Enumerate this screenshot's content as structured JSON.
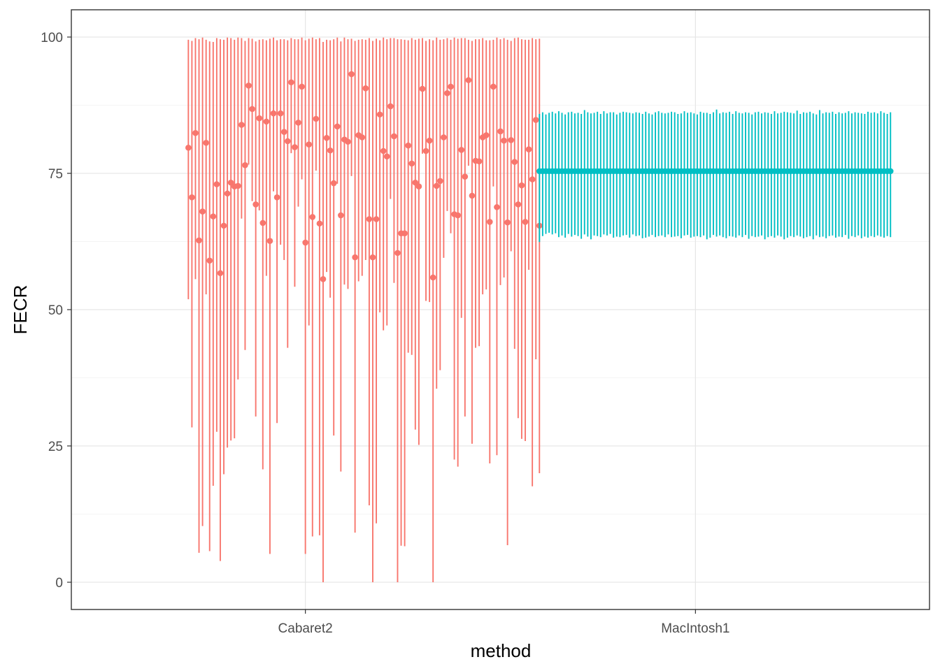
{
  "chart_data": {
    "type": "pointrange",
    "title": "",
    "xlabel": "method",
    "ylabel": "FECR",
    "categories": [
      "Cabaret2",
      "MacIntosh1"
    ],
    "ylim": [
      -5,
      105
    ],
    "yticks": [
      0,
      25,
      50,
      75,
      100
    ],
    "grid": true,
    "legend": "none",
    "colors": {
      "Cabaret2": "#F8766D",
      "MacIntosh1": "#00BFC4"
    },
    "series": [
      {
        "category": "Cabaret2",
        "x_range": [
          0.7,
          1.6
        ],
        "est": [
          79.7,
          70.6,
          82.4,
          62.7,
          68.0,
          80.6,
          59.0,
          67.1,
          73.0,
          56.7,
          65.4,
          71.3,
          73.3,
          72.6,
          72.7,
          83.9,
          76.5,
          91.1,
          86.8,
          69.3,
          85.1,
          65.9,
          84.5,
          62.6,
          86.0,
          70.6,
          86.0,
          82.6,
          80.9,
          91.7,
          79.8,
          84.3,
          90.9,
          62.3,
          80.3,
          67.0,
          85.0,
          65.8,
          55.6,
          81.5,
          79.2,
          73.2,
          83.6,
          67.3,
          81.2,
          80.8,
          93.2,
          59.6,
          82.0,
          81.6,
          90.6,
          66.6,
          59.6,
          66.6,
          85.8,
          79.1,
          78.1,
          87.3,
          81.8,
          60.4,
          64.0,
          64.0,
          80.1,
          76.8,
          73.3,
          72.6,
          90.5,
          79.1,
          81.0,
          55.9,
          72.7,
          73.6,
          81.6,
          89.7,
          90.9,
          67.5,
          67.3,
          79.3,
          74.4,
          92.1,
          70.9,
          77.3,
          77.2,
          81.6,
          82.0,
          66.1,
          90.9,
          68.8,
          82.7,
          81.0,
          66.0,
          81.1,
          77.1,
          69.3,
          72.8,
          66.1,
          79.4,
          73.9,
          84.8,
          65.4
        ],
        "upper": [
          99.5,
          99.3,
          99.8,
          99.6,
          99.9,
          99.5,
          99.2,
          99.1,
          99.8,
          99.6,
          99.5,
          99.9,
          99.8,
          99.5,
          99.9,
          99.8,
          99.3,
          99.8,
          99.7,
          99.2,
          99.5,
          99.6,
          99.4,
          99.7,
          99.9,
          99.4,
          99.6,
          99.6,
          99.4,
          99.8,
          99.6,
          99.6,
          99.9,
          99.4,
          99.7,
          99.9,
          99.6,
          99.8,
          99.1,
          99.5,
          99.4,
          99.6,
          99.9,
          99.2,
          99.9,
          99.6,
          99.7,
          99.3,
          99.5,
          99.6,
          99.5,
          99.8,
          99.3,
          99.7,
          99.4,
          99.9,
          99.6,
          99.8,
          99.8,
          99.6,
          99.6,
          99.5,
          99.4,
          99.8,
          99.5,
          99.7,
          99.8,
          99.3,
          99.6,
          99.4,
          99.9,
          99.5,
          99.6,
          99.8,
          99.5,
          99.9,
          99.7,
          99.8,
          99.8,
          99.5,
          99.3,
          99.6,
          99.6,
          99.8,
          99.4,
          99.4,
          99.5,
          99.9,
          99.6,
          99.8,
          99.5,
          99.3,
          99.8,
          99.9,
          99.6,
          99.5,
          99.5,
          99.8,
          99.6,
          99.7
        ],
        "lower": [
          51.9,
          28.4,
          55.6,
          5.4,
          10.3,
          52.8,
          5.7,
          17.7,
          27.6,
          3.9,
          19.8,
          24.7,
          26.0,
          26.4,
          37.2,
          66.7,
          42.6,
          76.6,
          69.9,
          30.4,
          68.2,
          20.7,
          56.2,
          5.2,
          71.7,
          29.2,
          61.9,
          59.1,
          43.0,
          78.7,
          54.2,
          68.9,
          73.9,
          5.2,
          47.1,
          8.4,
          75.5,
          8.6,
          0.0,
          56.9,
          52.2,
          26.9,
          73.1,
          20.3,
          54.6,
          53.8,
          74.5,
          9.1,
          55.2,
          56.2,
          59.1,
          14.1,
          0.0,
          10.8,
          49.5,
          46.2,
          47.1,
          70.3,
          54.9,
          0.0,
          6.7,
          6.6,
          42.1,
          41.7,
          28.0,
          25.2,
          78.6,
          51.6,
          51.4,
          0.0,
          35.5,
          38.9,
          59.5,
          68.1,
          64.0,
          22.5,
          21.2,
          48.5,
          30.4,
          76.4,
          25.4,
          43.0,
          43.3,
          52.8,
          53.7,
          21.8,
          72.6,
          23.3,
          54.5,
          55.9,
          6.8,
          60.7,
          42.8,
          30.1,
          26.3,
          25.9,
          57.3,
          17.6,
          40.9,
          20.0
        ]
      },
      {
        "category": "MacIntosh1",
        "x_range": [
          1.6,
          2.5
        ],
        "est": 75.4,
        "upper": [
          85.9,
          86.2,
          85.8,
          86.1,
          86.3,
          86.0,
          86.4,
          86.1,
          85.8,
          86.2,
          86.3,
          86.0,
          86.1,
          85.9,
          86.6,
          86.2,
          86.0,
          86.1,
          86.3,
          85.9,
          86.4,
          86.0,
          86.2,
          86.2,
          85.8,
          86.1,
          86.3,
          86.2,
          86.1,
          86.0,
          86.2,
          86.1,
          85.9,
          86.3,
          86.0,
          85.8,
          86.2,
          86.4,
          86.1,
          86.0,
          86.1,
          86.3,
          86.2,
          85.9,
          86.0,
          86.4,
          86.1,
          86.2,
          86.0,
          85.8,
          86.3,
          86.1,
          86.1,
          85.9,
          86.2,
          86.7,
          86.0,
          86.2,
          86.1,
          86.3,
          85.9,
          86.4,
          86.1,
          86.0,
          86.2,
          86.1,
          85.8,
          86.2,
          86.3,
          86.0,
          86.2,
          86.1,
          85.9,
          86.4,
          86.0,
          86.1,
          86.3,
          86.2,
          86.1,
          86.0,
          86.5,
          85.9,
          86.2,
          86.1,
          86.3,
          86.0,
          85.8,
          86.6,
          86.0,
          86.2,
          86.1,
          86.3,
          85.9,
          86.2,
          86.0,
          86.1,
          86.4,
          86.0,
          86.2,
          86.1,
          86.0,
          85.9,
          86.3,
          86.1,
          86.2,
          86.0,
          86.4,
          86.1,
          85.9,
          86.2
        ],
        "lower": [
          62.4,
          63.5,
          63.9,
          64.1,
          63.8,
          64.0,
          63.3,
          63.6,
          63.2,
          63.9,
          63.4,
          63.7,
          63.5,
          63.0,
          63.8,
          63.4,
          62.9,
          63.6,
          63.5,
          63.3,
          63.8,
          63.6,
          63.9,
          63.2,
          63.4,
          63.3,
          63.6,
          63.7,
          63.2,
          63.8,
          63.5,
          63.6,
          63.1,
          63.2,
          63.4,
          63.7,
          63.3,
          63.5,
          63.6,
          63.3,
          63.8,
          63.3,
          63.4,
          63.5,
          63.1,
          63.6,
          63.7,
          63.2,
          63.4,
          63.5,
          63.3,
          63.6,
          62.9,
          63.2,
          63.7,
          63.4,
          63.6,
          63.3,
          63.1,
          63.5,
          63.4,
          63.2,
          63.6,
          63.3,
          63.7,
          63.0,
          63.5,
          63.3,
          63.4,
          63.6,
          62.9,
          63.3,
          63.5,
          63.2,
          63.6,
          63.4,
          62.9,
          63.2,
          63.5,
          63.3,
          63.6,
          63.4,
          63.1,
          63.3,
          63.5,
          62.9,
          63.6,
          63.3,
          63.4,
          63.1,
          63.5,
          63.6,
          63.2,
          63.4,
          63.3,
          63.7,
          63.0,
          63.5,
          63.3,
          63.6,
          63.1,
          63.4,
          63.2,
          63.5,
          63.3,
          63.6,
          63.4,
          63.2,
          63.5,
          63.3
        ]
      }
    ]
  }
}
